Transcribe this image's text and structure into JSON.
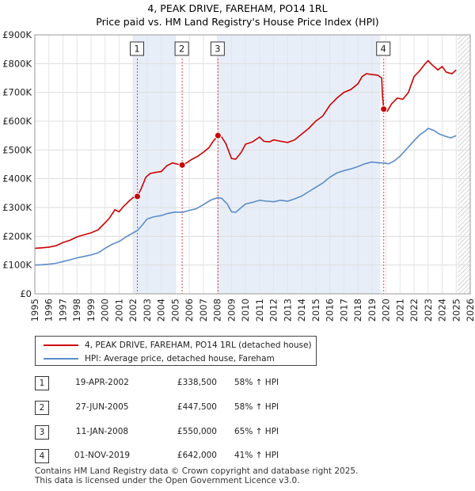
{
  "chart_data": {
    "type": "line",
    "title": "4, PEAK DRIVE, FAREHAM, PO14 1RL",
    "subtitle": "Price paid vs. HM Land Registry's House Price Index (HPI)",
    "xlim": [
      1995,
      2026
    ],
    "ylim": [
      0,
      900000
    ],
    "x_ticks": [
      "1995",
      "1996",
      "1997",
      "1998",
      "1999",
      "2000",
      "2001",
      "2002",
      "2003",
      "2004",
      "2005",
      "2006",
      "2007",
      "2008",
      "2009",
      "2010",
      "2011",
      "2012",
      "2013",
      "2014",
      "2015",
      "2016",
      "2017",
      "2018",
      "2019",
      "2020",
      "2021",
      "2022",
      "2023",
      "2024",
      "2025",
      "2026"
    ],
    "y_ticks": [
      {
        "value": 0,
        "label": "£0"
      },
      {
        "value": 100000,
        "label": "£100K"
      },
      {
        "value": 200000,
        "label": "£200K"
      },
      {
        "value": 300000,
        "label": "£300K"
      },
      {
        "value": 400000,
        "label": "£400K"
      },
      {
        "value": 500000,
        "label": "£500K"
      },
      {
        "value": 600000,
        "label": "£600K"
      },
      {
        "value": 700000,
        "label": "£700K"
      },
      {
        "value": 800000,
        "label": "£800K"
      },
      {
        "value": 900000,
        "label": "£900K"
      }
    ],
    "shaded_periods": [
      [
        2002.0,
        2005.0
      ],
      [
        2008.0,
        2019.6
      ]
    ],
    "future_hatch_from": 2025.1,
    "series": [
      {
        "name": "4, PEAK DRIVE, FAREHAM, PO14 1RL (detached house)",
        "color": "#cc0000",
        "points": [
          [
            1995.0,
            158000
          ],
          [
            1995.5,
            160000
          ],
          [
            1996.0,
            162000
          ],
          [
            1996.5,
            167000
          ],
          [
            1997.0,
            178000
          ],
          [
            1997.5,
            186000
          ],
          [
            1998.0,
            198000
          ],
          [
            1998.5,
            205000
          ],
          [
            1999.0,
            212000
          ],
          [
            1999.5,
            222000
          ],
          [
            2000.0,
            247000
          ],
          [
            2000.3,
            262000
          ],
          [
            2000.7,
            292000
          ],
          [
            2001.0,
            285000
          ],
          [
            2001.3,
            303000
          ],
          [
            2001.7,
            322000
          ],
          [
            2002.0,
            335000
          ],
          [
            2002.3,
            338500
          ],
          [
            2002.6,
            368000
          ],
          [
            2002.9,
            405000
          ],
          [
            2003.2,
            418000
          ],
          [
            2003.6,
            422000
          ],
          [
            2004.0,
            425000
          ],
          [
            2004.4,
            445000
          ],
          [
            2004.8,
            455000
          ],
          [
            2005.2,
            450000
          ],
          [
            2005.5,
            447500
          ],
          [
            2005.8,
            455000
          ],
          [
            2006.2,
            468000
          ],
          [
            2006.6,
            478000
          ],
          [
            2007.0,
            492000
          ],
          [
            2007.4,
            508000
          ],
          [
            2007.7,
            530000
          ],
          [
            2008.04,
            550000
          ],
          [
            2008.3,
            545000
          ],
          [
            2008.6,
            522000
          ],
          [
            2009.0,
            470000
          ],
          [
            2009.3,
            468000
          ],
          [
            2009.7,
            492000
          ],
          [
            2010.0,
            520000
          ],
          [
            2010.5,
            528000
          ],
          [
            2011.0,
            545000
          ],
          [
            2011.3,
            530000
          ],
          [
            2011.7,
            528000
          ],
          [
            2012.0,
            535000
          ],
          [
            2012.5,
            530000
          ],
          [
            2013.0,
            526000
          ],
          [
            2013.5,
            535000
          ],
          [
            2014.0,
            555000
          ],
          [
            2014.5,
            575000
          ],
          [
            2015.0,
            600000
          ],
          [
            2015.5,
            618000
          ],
          [
            2016.0,
            655000
          ],
          [
            2016.5,
            680000
          ],
          [
            2017.0,
            700000
          ],
          [
            2017.5,
            710000
          ],
          [
            2018.0,
            730000
          ],
          [
            2018.3,
            755000
          ],
          [
            2018.6,
            765000
          ],
          [
            2019.0,
            762000
          ],
          [
            2019.4,
            760000
          ],
          [
            2019.7,
            750000
          ],
          [
            2019.75,
            690000
          ],
          [
            2019.84,
            642000
          ],
          [
            2020.1,
            635000
          ],
          [
            2020.4,
            660000
          ],
          [
            2020.8,
            680000
          ],
          [
            2021.2,
            676000
          ],
          [
            2021.6,
            700000
          ],
          [
            2022.0,
            755000
          ],
          [
            2022.4,
            775000
          ],
          [
            2022.8,
            800000
          ],
          [
            2023.0,
            810000
          ],
          [
            2023.3,
            795000
          ],
          [
            2023.7,
            778000
          ],
          [
            2024.0,
            790000
          ],
          [
            2024.3,
            770000
          ],
          [
            2024.7,
            765000
          ],
          [
            2025.0,
            778000
          ]
        ]
      },
      {
        "name": "HPI: Average price, detached house, Fareham",
        "color": "#5b8cc8",
        "points": [
          [
            1995.0,
            100000
          ],
          [
            1995.5,
            101000
          ],
          [
            1996.0,
            103000
          ],
          [
            1996.5,
            106000
          ],
          [
            1997.0,
            112000
          ],
          [
            1997.5,
            118000
          ],
          [
            1998.0,
            125000
          ],
          [
            1998.5,
            130000
          ],
          [
            1999.0,
            135000
          ],
          [
            1999.5,
            142000
          ],
          [
            2000.0,
            158000
          ],
          [
            2000.5,
            172000
          ],
          [
            2001.0,
            182000
          ],
          [
            2001.5,
            198000
          ],
          [
            2002.0,
            212000
          ],
          [
            2002.3,
            220000
          ],
          [
            2002.7,
            242000
          ],
          [
            2003.0,
            260000
          ],
          [
            2003.5,
            268000
          ],
          [
            2004.0,
            272000
          ],
          [
            2004.5,
            280000
          ],
          [
            2005.0,
            284000
          ],
          [
            2005.5,
            283000
          ],
          [
            2006.0,
            290000
          ],
          [
            2006.5,
            296000
          ],
          [
            2007.0,
            310000
          ],
          [
            2007.5,
            325000
          ],
          [
            2008.0,
            334000
          ],
          [
            2008.3,
            332000
          ],
          [
            2008.7,
            312000
          ],
          [
            2009.0,
            285000
          ],
          [
            2009.3,
            283000
          ],
          [
            2009.7,
            300000
          ],
          [
            2010.0,
            312000
          ],
          [
            2010.5,
            318000
          ],
          [
            2011.0,
            325000
          ],
          [
            2011.5,
            322000
          ],
          [
            2012.0,
            320000
          ],
          [
            2012.5,
            325000
          ],
          [
            2013.0,
            322000
          ],
          [
            2013.5,
            330000
          ],
          [
            2014.0,
            340000
          ],
          [
            2014.5,
            355000
          ],
          [
            2015.0,
            370000
          ],
          [
            2015.5,
            385000
          ],
          [
            2016.0,
            405000
          ],
          [
            2016.5,
            420000
          ],
          [
            2017.0,
            428000
          ],
          [
            2017.5,
            434000
          ],
          [
            2018.0,
            442000
          ],
          [
            2018.5,
            452000
          ],
          [
            2019.0,
            458000
          ],
          [
            2019.5,
            455000
          ],
          [
            2019.84,
            455000
          ],
          [
            2020.2,
            452000
          ],
          [
            2020.6,
            462000
          ],
          [
            2021.0,
            478000
          ],
          [
            2021.5,
            505000
          ],
          [
            2022.0,
            532000
          ],
          [
            2022.4,
            552000
          ],
          [
            2022.8,
            566000
          ],
          [
            2023.0,
            575000
          ],
          [
            2023.4,
            568000
          ],
          [
            2023.8,
            555000
          ],
          [
            2024.2,
            548000
          ],
          [
            2024.6,
            542000
          ],
          [
            2025.0,
            550000
          ]
        ]
      }
    ],
    "annotations": [
      {
        "label": "1",
        "x": 2002.3,
        "y": 338500
      },
      {
        "label": "2",
        "x": 2005.49,
        "y": 447500
      },
      {
        "label": "3",
        "x": 2008.04,
        "y": 550000
      },
      {
        "label": "4",
        "x": 2019.84,
        "y": 642000
      }
    ]
  },
  "legend": {
    "property_label": "4, PEAK DRIVE, FAREHAM, PO14 1RL (detached house)",
    "hpi_label": "HPI: Average price, detached house, Fareham"
  },
  "sales": [
    {
      "num": "1",
      "date": "19-APR-2002",
      "price": "£338,500",
      "hpi": "58% ↑ HPI"
    },
    {
      "num": "2",
      "date": "27-JUN-2005",
      "price": "£447,500",
      "hpi": "58% ↑ HPI"
    },
    {
      "num": "3",
      "date": "11-JAN-2008",
      "price": "£550,000",
      "hpi": "65% ↑ HPI"
    },
    {
      "num": "4",
      "date": "01-NOV-2019",
      "price": "£642,000",
      "hpi": "41% ↑ HPI"
    }
  ],
  "footer": {
    "line1": "Contains HM Land Registry data © Crown copyright and database right 2025.",
    "line2": "This data is licensed under the Open Government Licence v3.0."
  }
}
